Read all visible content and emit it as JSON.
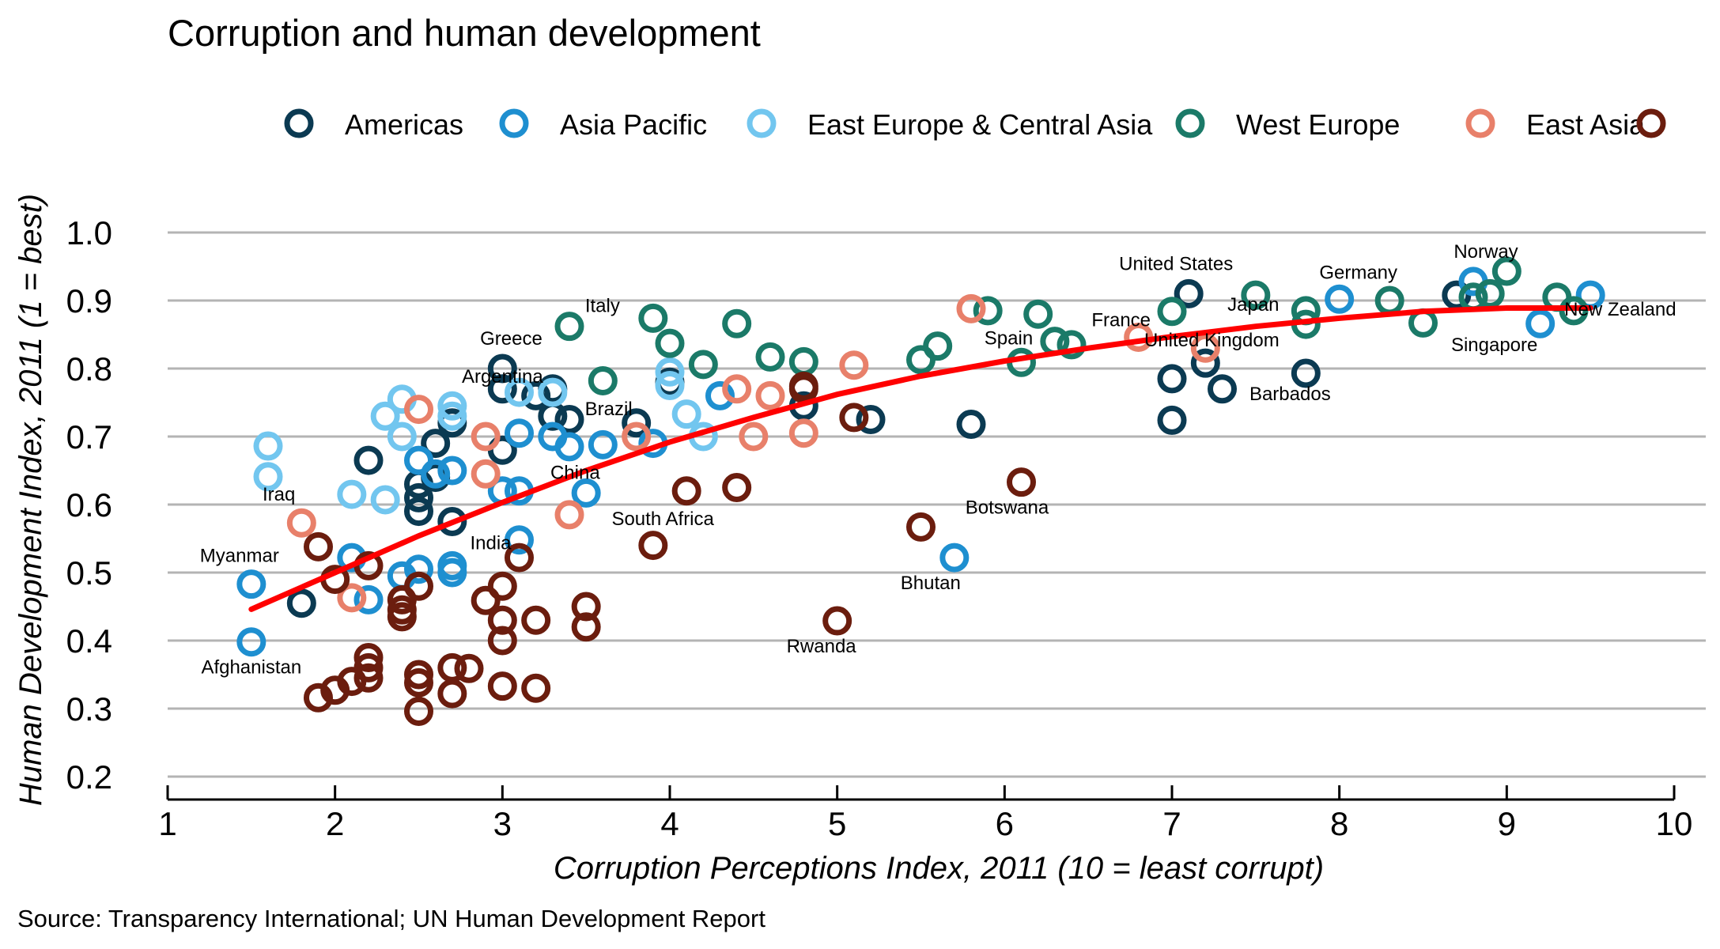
{
  "chart_data": {
    "type": "scatter",
    "title": "Corruption and human development",
    "xlabel": "Corruption Perceptions Index, 2011 (10 = least corrupt)",
    "ylabel": "Human Development Index, 2011 (1 = best)",
    "source": "Source: Transparency International; UN Human Development Report",
    "xlim": [
      1,
      10
    ],
    "ylim": [
      0.2,
      1.0
    ],
    "xticks": [
      "1",
      "2",
      "3",
      "4",
      "5",
      "6",
      "7",
      "8",
      "9",
      "10"
    ],
    "yticks": [
      "0.2",
      "0.3",
      "0.4",
      "0.5",
      "0.6",
      "0.7",
      "0.8",
      "0.9",
      "1.0"
    ],
    "grid": "horizontal",
    "legend_position": "top",
    "series": [
      {
        "name": "Americas",
        "color": "#0b3a52",
        "points": [
          [
            1.8,
            0.455
          ],
          [
            2.2,
            0.665
          ],
          [
            2.5,
            0.59
          ],
          [
            2.5,
            0.63
          ],
          [
            2.6,
            0.69
          ],
          [
            2.7,
            0.72
          ],
          [
            2.7,
            0.575
          ],
          [
            2.6,
            0.64
          ],
          [
            3.0,
            0.8
          ],
          [
            3.0,
            0.77
          ],
          [
            3.2,
            0.76
          ],
          [
            3.3,
            0.73
          ],
          [
            3.4,
            0.725
          ],
          [
            3.0,
            0.68
          ],
          [
            3.8,
            0.72
          ],
          [
            4.0,
            0.78
          ],
          [
            4.8,
            0.745
          ],
          [
            5.2,
            0.725
          ],
          [
            5.8,
            0.718
          ],
          [
            7.1,
            0.91
          ],
          [
            7.0,
            0.785
          ],
          [
            7.0,
            0.724
          ],
          [
            7.2,
            0.808
          ],
          [
            7.3,
            0.77
          ],
          [
            7.8,
            0.793
          ],
          [
            8.7,
            0.908
          ],
          [
            3.3,
            0.77
          ],
          [
            2.5,
            0.61
          ]
        ]
      },
      {
        "name": "Asia Pacific",
        "color": "#1e8fd0",
        "points": [
          [
            1.5,
            0.483
          ],
          [
            1.5,
            0.398
          ],
          [
            2.1,
            0.522
          ],
          [
            2.2,
            0.46
          ],
          [
            2.4,
            0.495
          ],
          [
            2.5,
            0.505
          ],
          [
            2.5,
            0.665
          ],
          [
            2.6,
            0.645
          ],
          [
            2.7,
            0.65
          ],
          [
            2.7,
            0.51
          ],
          [
            2.7,
            0.5
          ],
          [
            3.0,
            0.62
          ],
          [
            3.1,
            0.62
          ],
          [
            3.1,
            0.705
          ],
          [
            3.1,
            0.548
          ],
          [
            3.3,
            0.7
          ],
          [
            3.4,
            0.685
          ],
          [
            3.5,
            0.617
          ],
          [
            3.6,
            0.688
          ],
          [
            3.9,
            0.69
          ],
          [
            4.3,
            0.76
          ],
          [
            5.7,
            0.522
          ],
          [
            8.0,
            0.902
          ],
          [
            8.8,
            0.928
          ],
          [
            9.2,
            0.866
          ],
          [
            9.5,
            0.908
          ]
        ]
      },
      {
        "name": "East Europe & Central Asia",
        "color": "#72c6ef",
        "points": [
          [
            1.6,
            0.686
          ],
          [
            1.6,
            0.641
          ],
          [
            2.1,
            0.615
          ],
          [
            2.3,
            0.607
          ],
          [
            2.3,
            0.73
          ],
          [
            2.4,
            0.755
          ],
          [
            2.4,
            0.7
          ],
          [
            2.7,
            0.745
          ],
          [
            2.7,
            0.73
          ],
          [
            3.1,
            0.765
          ],
          [
            3.3,
            0.765
          ],
          [
            4.0,
            0.795
          ],
          [
            4.0,
            0.775
          ],
          [
            4.1,
            0.733
          ],
          [
            4.2,
            0.7
          ]
        ]
      },
      {
        "name": "West Europe",
        "color": "#1b7a68",
        "points": [
          [
            3.4,
            0.862
          ],
          [
            3.6,
            0.782
          ],
          [
            3.9,
            0.874
          ],
          [
            4.0,
            0.837
          ],
          [
            4.2,
            0.806
          ],
          [
            4.4,
            0.866
          ],
          [
            4.6,
            0.817
          ],
          [
            4.8,
            0.81
          ],
          [
            5.5,
            0.813
          ],
          [
            5.6,
            0.833
          ],
          [
            5.9,
            0.885
          ],
          [
            6.1,
            0.809
          ],
          [
            6.2,
            0.88
          ],
          [
            6.3,
            0.84
          ],
          [
            6.4,
            0.835
          ],
          [
            7.0,
            0.884
          ],
          [
            7.5,
            0.908
          ],
          [
            7.8,
            0.885
          ],
          [
            7.8,
            0.865
          ],
          [
            8.3,
            0.9
          ],
          [
            8.5,
            0.867
          ],
          [
            8.8,
            0.905
          ],
          [
            8.9,
            0.91
          ],
          [
            9.0,
            0.943
          ],
          [
            9.3,
            0.905
          ],
          [
            9.4,
            0.885
          ]
        ]
      },
      {
        "name": "East Asia",
        "color": "#e8806a",
        "points": [
          [
            1.8,
            0.573
          ],
          [
            2.1,
            0.463
          ],
          [
            2.5,
            0.74
          ],
          [
            2.9,
            0.7
          ],
          [
            2.9,
            0.645
          ],
          [
            3.4,
            0.585
          ],
          [
            3.8,
            0.7
          ],
          [
            4.4,
            0.77
          ],
          [
            4.5,
            0.7
          ],
          [
            4.6,
            0.76
          ],
          [
            4.8,
            0.705
          ],
          [
            5.1,
            0.805
          ],
          [
            5.8,
            0.888
          ],
          [
            6.8,
            0.846
          ],
          [
            7.2,
            0.83
          ]
        ]
      },
      {
        "name": "",
        "color": "#6b1d0e",
        "points": [
          [
            1.9,
            0.316
          ],
          [
            1.9,
            0.538
          ],
          [
            2.0,
            0.327
          ],
          [
            2.0,
            0.49
          ],
          [
            2.1,
            0.34
          ],
          [
            2.2,
            0.36
          ],
          [
            2.2,
            0.375
          ],
          [
            2.2,
            0.345
          ],
          [
            2.2,
            0.51
          ],
          [
            2.4,
            0.435
          ],
          [
            2.4,
            0.445
          ],
          [
            2.4,
            0.46
          ],
          [
            2.5,
            0.48
          ],
          [
            2.5,
            0.35
          ],
          [
            2.5,
            0.338
          ],
          [
            2.5,
            0.296
          ],
          [
            2.7,
            0.36
          ],
          [
            2.7,
            0.322
          ],
          [
            2.8,
            0.359
          ],
          [
            2.9,
            0.459
          ],
          [
            3.0,
            0.333
          ],
          [
            3.0,
            0.43
          ],
          [
            3.0,
            0.4
          ],
          [
            3.0,
            0.48
          ],
          [
            3.1,
            0.522
          ],
          [
            3.2,
            0.43
          ],
          [
            3.2,
            0.33
          ],
          [
            3.5,
            0.45
          ],
          [
            3.5,
            0.42
          ],
          [
            3.9,
            0.54
          ],
          [
            4.1,
            0.62
          ],
          [
            4.4,
            0.625
          ],
          [
            4.8,
            0.774
          ],
          [
            4.8,
            0.77
          ],
          [
            5.0,
            0.429
          ],
          [
            5.1,
            0.728
          ],
          [
            5.5,
            0.567
          ],
          [
            6.1,
            0.633
          ]
        ]
      }
    ],
    "trend_line": {
      "color": "#ff0000",
      "points": [
        [
          1.5,
          0.446
        ],
        [
          2.0,
          0.5
        ],
        [
          2.5,
          0.554
        ],
        [
          3.0,
          0.603
        ],
        [
          3.5,
          0.65
        ],
        [
          4.0,
          0.692
        ],
        [
          4.5,
          0.728
        ],
        [
          5.0,
          0.762
        ],
        [
          5.5,
          0.789
        ],
        [
          6.0,
          0.811
        ],
        [
          6.5,
          0.83
        ],
        [
          7.0,
          0.847
        ],
        [
          7.5,
          0.862
        ],
        [
          8.0,
          0.874
        ],
        [
          8.5,
          0.884
        ],
        [
          9.0,
          0.889
        ],
        [
          9.5,
          0.889
        ]
      ]
    },
    "annotations": [
      {
        "text": "Afghanistan",
        "x": 1.5,
        "y": 0.398,
        "anchor": "middle",
        "dy": 40
      },
      {
        "text": "Myanmar",
        "x": 1.5,
        "y": 0.483,
        "anchor": "end",
        "dx": 35,
        "dy": -28
      },
      {
        "text": "Iraq",
        "x": 1.8,
        "y": 0.573,
        "anchor": "end",
        "dx": -8,
        "dy": -28
      },
      {
        "text": "Greece",
        "x": 3.1,
        "y": 0.8,
        "anchor": "middle",
        "dx": -10,
        "dy": -30
      },
      {
        "text": "Argentina",
        "x": 3.0,
        "y": 0.77,
        "anchor": "middle",
        "dy": -8
      },
      {
        "text": "Italy",
        "x": 3.9,
        "y": 0.874,
        "anchor": "end",
        "dx": -42,
        "dy": -8
      },
      {
        "text": "Brazil",
        "x": 3.8,
        "y": 0.72,
        "anchor": "middle",
        "dx": -35,
        "dy": -10
      },
      {
        "text": "China",
        "x": 3.6,
        "y": 0.688,
        "anchor": "middle",
        "dx": -35,
        "dy": 43
      },
      {
        "text": "India",
        "x": 3.1,
        "y": 0.548,
        "anchor": "middle",
        "dx": -36,
        "dy": 12
      },
      {
        "text": "South Africa",
        "x": 4.1,
        "y": 0.62,
        "anchor": "middle",
        "dx": -30,
        "dy": 43
      },
      {
        "text": "Rwanda",
        "x": 5.0,
        "y": 0.429,
        "anchor": "end",
        "dx": 24,
        "dy": 40
      },
      {
        "text": "Bhutan",
        "x": 5.7,
        "y": 0.522,
        "anchor": "middle",
        "dx": -30,
        "dy": 40
      },
      {
        "text": "Botswana",
        "x": 6.1,
        "y": 0.633,
        "anchor": "middle",
        "dx": -18,
        "dy": 40
      },
      {
        "text": "Spain",
        "x": 6.1,
        "y": 0.809,
        "anchor": "middle",
        "dx": -16,
        "dy": -23
      },
      {
        "text": "France",
        "x": 6.8,
        "y": 0.846,
        "anchor": "middle",
        "dx": -22,
        "dy": -14
      },
      {
        "text": "United States",
        "x": 7.1,
        "y": 0.91,
        "anchor": "middle",
        "dx": -16,
        "dy": -30
      },
      {
        "text": "United Kingdom",
        "x": 7.2,
        "y": 0.83,
        "anchor": "middle",
        "dx": 8,
        "dy": -2
      },
      {
        "text": "Japan",
        "x": 7.5,
        "y": 0.908,
        "anchor": "middle",
        "dx": -3,
        "dy": 20
      },
      {
        "text": "Barbados",
        "x": 7.8,
        "y": 0.793,
        "anchor": "middle",
        "dx": -20,
        "dy": 34
      },
      {
        "text": "Germany",
        "x": 8.0,
        "y": 0.902,
        "anchor": "middle",
        "dx": 24,
        "dy": -26
      },
      {
        "text": "Norway",
        "x": 8.8,
        "y": 0.928,
        "anchor": "middle",
        "dx": 16,
        "dy": -30
      },
      {
        "text": "Singapore",
        "x": 9.2,
        "y": 0.866,
        "anchor": "middle",
        "dx": -58,
        "dy": 35
      },
      {
        "text": "New Zealand",
        "x": 9.5,
        "y": 0.908,
        "anchor": "start",
        "dx": -33,
        "dy": 26
      }
    ]
  }
}
